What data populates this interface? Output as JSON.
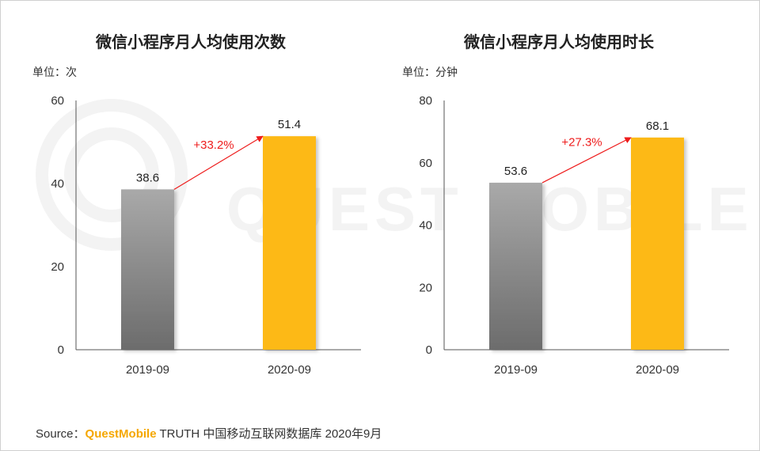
{
  "watermark": "QUEST MOBILE",
  "colors": {
    "gray_top": "#a9a9a9",
    "gray_bottom": "#6c6c6c",
    "gold": "#fdb913",
    "arrow": "#ee1c1c"
  },
  "source": {
    "prefix": "Source：",
    "brand": "QuestMobile",
    "rest": " TRUTH 中国移动互联网数据库 2020年9月"
  },
  "chart_data": [
    {
      "type": "bar",
      "title": "微信小程序月人均使用次数",
      "unit": "单位：次",
      "categories": [
        "2019-09",
        "2020-09"
      ],
      "values": [
        38.6,
        51.4
      ],
      "value_labels": [
        "38.6",
        "51.4"
      ],
      "ylim": [
        0,
        60
      ],
      "yticks": [
        0,
        20,
        40,
        60
      ],
      "growth": "+33.2%"
    },
    {
      "type": "bar",
      "title": "微信小程序月人均使用时长",
      "unit": "单位：分钟",
      "categories": [
        "2019-09",
        "2020-09"
      ],
      "values": [
        53.6,
        68.1
      ],
      "value_labels": [
        "53.6",
        "68.1"
      ],
      "ylim": [
        0,
        80
      ],
      "yticks": [
        0,
        20,
        40,
        60,
        80
      ],
      "growth": "+27.3%"
    }
  ]
}
